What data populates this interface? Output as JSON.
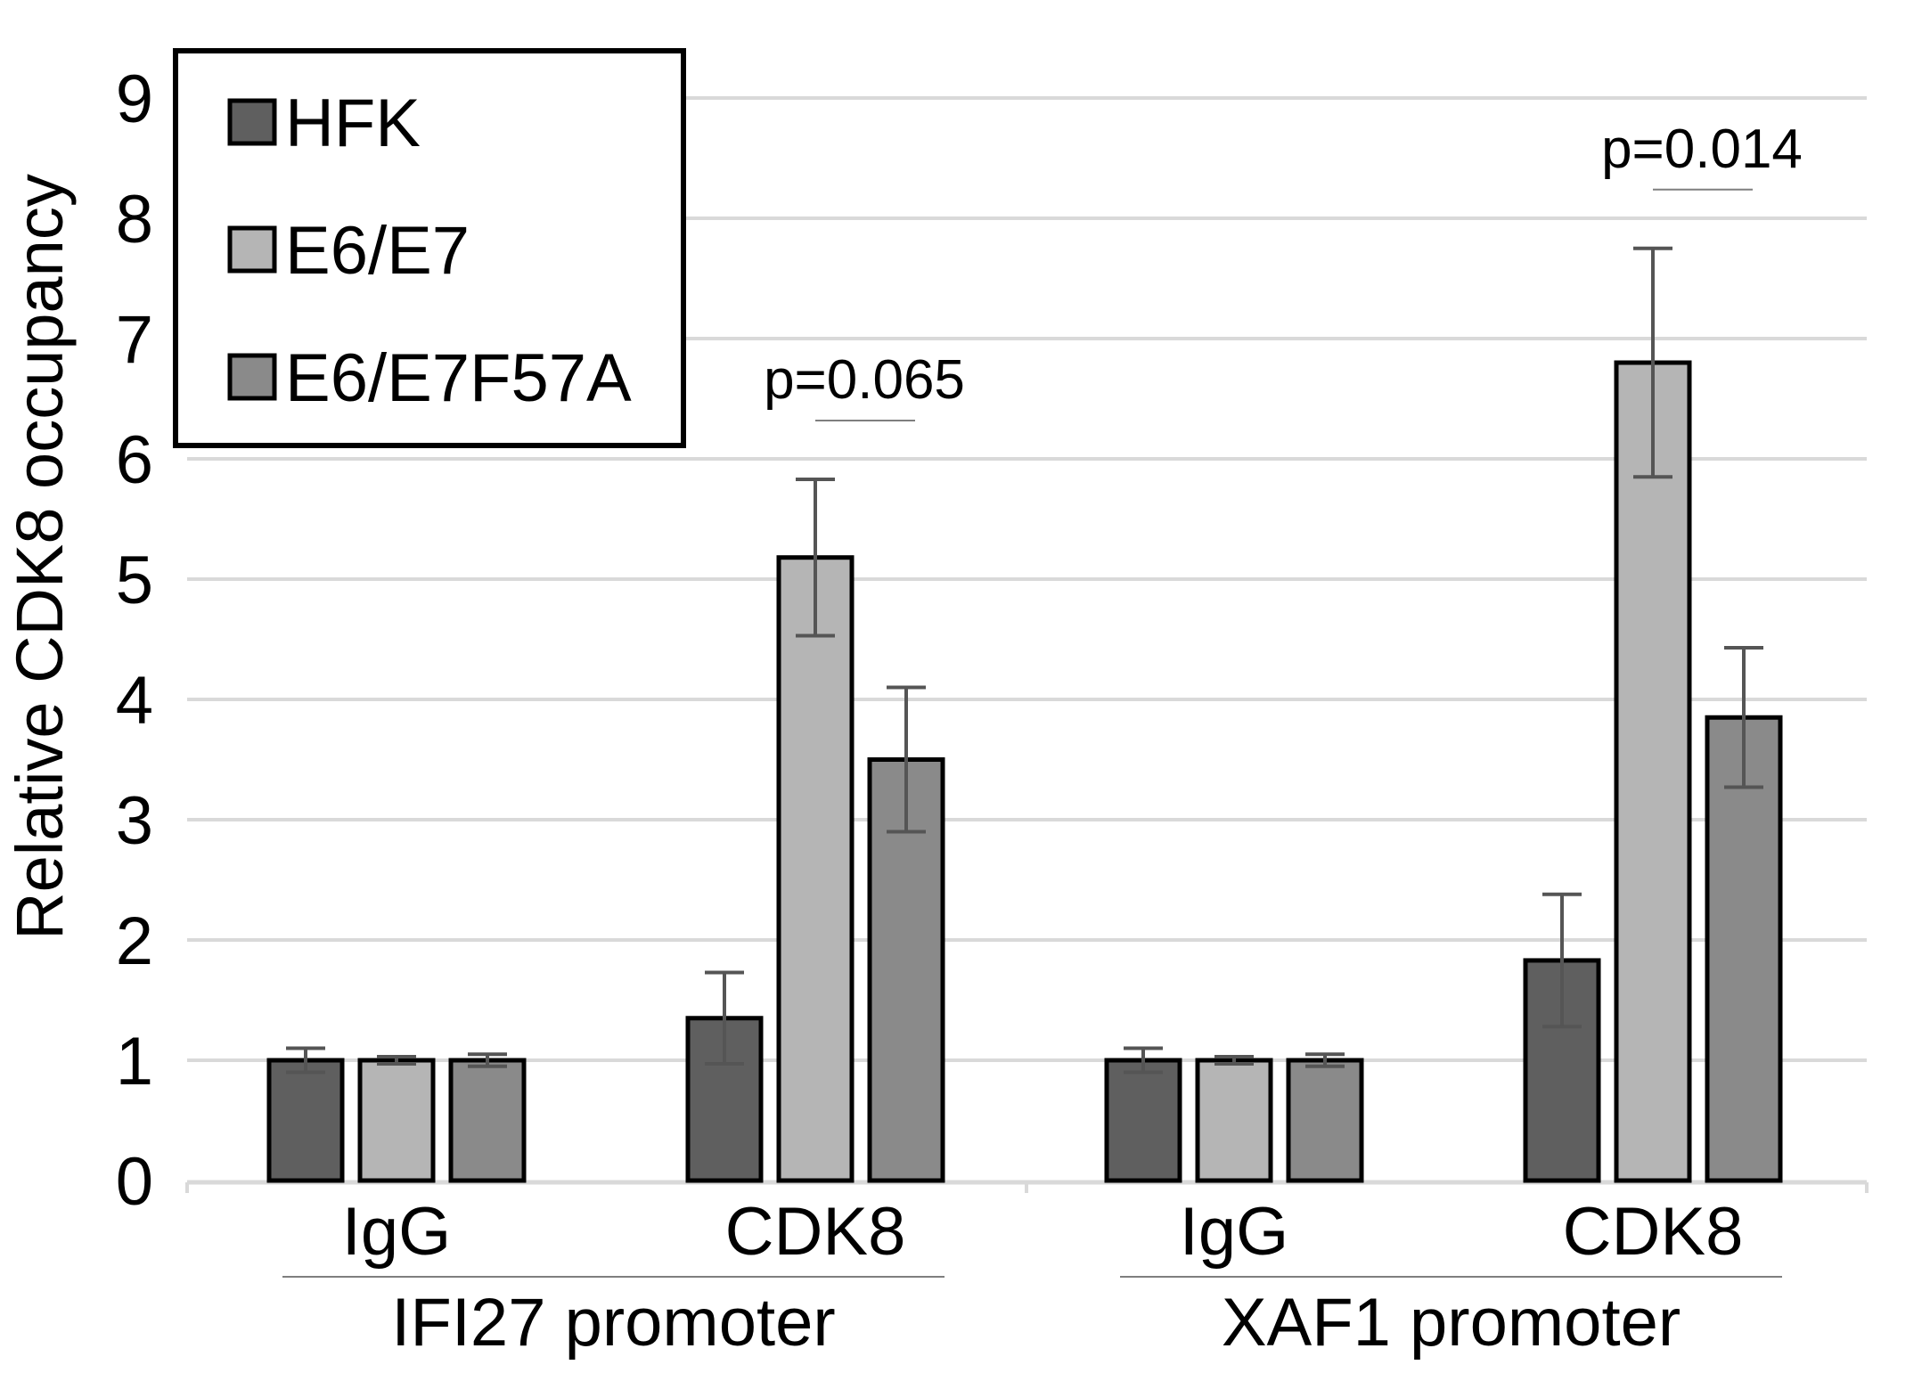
{
  "chart_data": {
    "type": "bar",
    "title": "",
    "ylabel": "Relative CDK8 occupancy",
    "xlabel": "",
    "ylim": [
      0,
      9
    ],
    "yticks": [
      "0",
      "1",
      "2",
      "3",
      "4",
      "5",
      "6",
      "7",
      "8",
      "9"
    ],
    "grid": true,
    "legend_position": "top-left",
    "categories": [
      "IgG",
      "CDK8",
      "IgG",
      "CDK8"
    ],
    "groups": [
      {
        "label": "IFI27 promoter",
        "categories": [
          0,
          1
        ]
      },
      {
        "label": "XAF1 promoter",
        "categories": [
          2,
          3
        ]
      }
    ],
    "series": [
      {
        "name": "HFK",
        "color": "#5f5f5f",
        "values": [
          1.0,
          1.35,
          1.0,
          1.83
        ],
        "errors": [
          0.1,
          0.38,
          0.1,
          0.55
        ]
      },
      {
        "name": "E6/E7",
        "color": "#b5b5b5",
        "values": [
          1.0,
          5.18,
          1.0,
          6.8
        ],
        "errors": [
          0.03,
          0.65,
          0.03,
          0.95
        ]
      },
      {
        "name": "E6/E7F57A",
        "color": "#8a8a8a",
        "values": [
          1.0,
          3.5,
          1.0,
          3.85
        ],
        "errors": [
          0.05,
          0.6,
          0.05,
          0.58
        ]
      }
    ],
    "annotations": [
      {
        "text": "p=0.065",
        "category": 1
      },
      {
        "text": "p=0.014",
        "category": 3
      }
    ]
  }
}
